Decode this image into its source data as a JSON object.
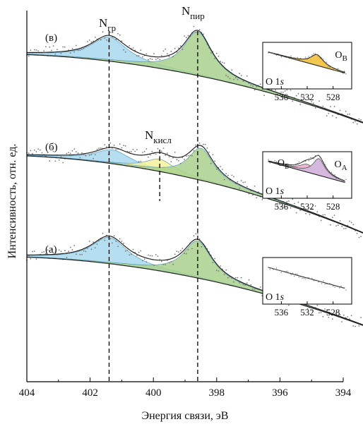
{
  "chart_data": {
    "type": "line",
    "subtype": "xps-spectra-with-peak-deconvolution",
    "xlabel": "Энергия связи, эВ",
    "ylabel": "Интенсивность, отн. ед.",
    "xlim": [
      404,
      394
    ],
    "x_ticks": [
      404,
      402,
      400,
      398,
      396,
      394
    ],
    "x_tick_labels": [
      "404",
      "402",
      "400",
      "398",
      "396",
      "394"
    ],
    "x_reversed": true,
    "y_ticks_shown": false,
    "reference_lines": [
      {
        "x": 401.4,
        "label_main": "N",
        "label_sub": "гр"
      },
      {
        "x": 398.6,
        "label_main": "N",
        "label_sub": "пир"
      },
      {
        "x": 399.8,
        "label_main": "N",
        "label_sub": "кисл",
        "panel": "(б)",
        "partial": true
      }
    ],
    "panels": [
      {
        "label": "(в)",
        "background_start": 0.3,
        "background_end": -1.1,
        "components": [
          {
            "name": "N гр",
            "center": 401.4,
            "height": 0.55,
            "width": 0.7,
            "color": "#a8d8ee"
          },
          {
            "name": "N пир",
            "center": 398.6,
            "height": 1.0,
            "width": 0.55,
            "color": "#a9d18e"
          }
        ],
        "inset": {
          "core_level_main": "O 1",
          "core_level_sub": "s",
          "x_ticks": [
            "536",
            "532",
            "528"
          ],
          "peaks": [
            {
              "name_main": "O",
              "name_sub": "В",
              "center": 530.5,
              "height": 0.55,
              "width": 1.2,
              "color": "#f3c64e"
            }
          ]
        }
      },
      {
        "label": "(б)",
        "background_start": 0.3,
        "background_end": -1.1,
        "components": [
          {
            "name": "N гр",
            "center": 401.3,
            "height": 0.28,
            "width": 0.7,
            "color": "#a8d8ee"
          },
          {
            "name": "N кисл",
            "center": 399.8,
            "height": 0.25,
            "width": 0.55,
            "color": "#f6f29a"
          },
          {
            "name": "N пир",
            "center": 398.5,
            "height": 0.65,
            "width": 0.5,
            "color": "#a9d18e"
          }
        ],
        "inset": {
          "core_level_main": "O 1",
          "core_level_sub": "s",
          "x_ticks": [
            "536",
            "532",
            "528"
          ],
          "peaks": [
            {
              "name_main": "O",
              "name_sub": "Б",
              "center": 532.0,
              "height": 0.4,
              "width": 1.4,
              "color": "#eeb7cf"
            },
            {
              "name_main": "O",
              "name_sub": "А",
              "center": 530.2,
              "height": 0.85,
              "width": 1.1,
              "color": "#d6b8de"
            }
          ]
        }
      },
      {
        "label": "(а)",
        "background_start": 0.3,
        "background_end": -1.1,
        "components": [
          {
            "name": "N гр",
            "center": 401.4,
            "height": 0.6,
            "width": 0.7,
            "color": "#a8d8ee"
          },
          {
            "name": "N пир",
            "center": 398.6,
            "height": 0.85,
            "width": 0.55,
            "color": "#a9d18e"
          }
        ],
        "inset": {
          "core_level_main": "O 1",
          "core_level_sub": "s",
          "x_ticks": [
            "536",
            "532",
            "528"
          ],
          "peaks": []
        }
      }
    ]
  }
}
